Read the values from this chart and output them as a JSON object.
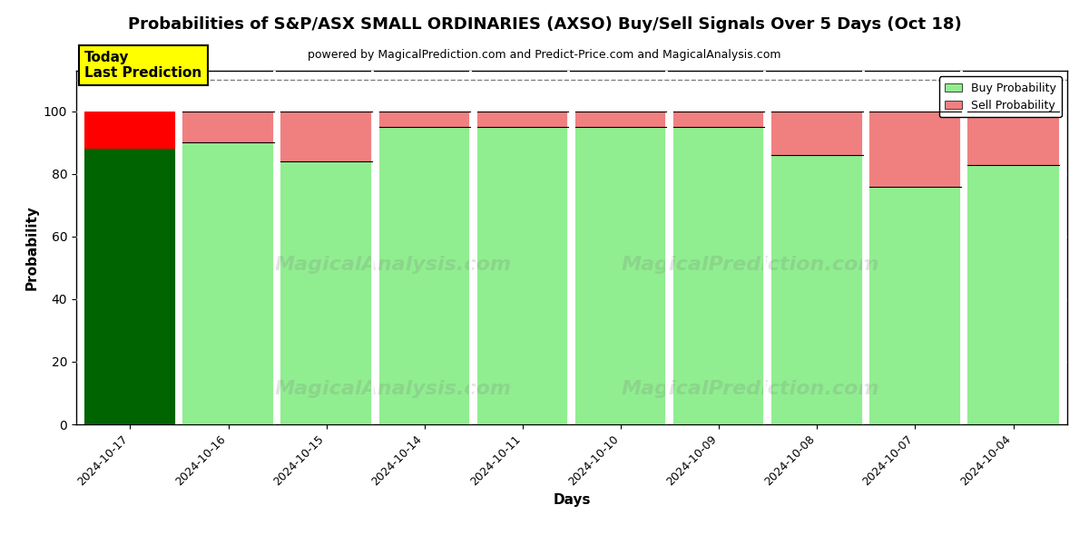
{
  "title": "Probabilities of S&P/ASX SMALL ORDINARIES (AXSO) Buy/Sell Signals Over 5 Days (Oct 18)",
  "subtitle": "powered by MagicalPrediction.com and Predict-Price.com and MagicalAnalysis.com",
  "xlabel": "Days",
  "ylabel": "Probability",
  "dates": [
    "2024-10-17",
    "2024-10-16",
    "2024-10-15",
    "2024-10-14",
    "2024-10-11",
    "2024-10-10",
    "2024-10-09",
    "2024-10-08",
    "2024-10-07",
    "2024-10-04"
  ],
  "buy_probs": [
    88,
    90,
    84,
    95,
    95,
    95,
    95,
    86,
    76,
    83
  ],
  "sell_probs": [
    12,
    10,
    16,
    5,
    5,
    5,
    5,
    14,
    24,
    17
  ],
  "today_buy_color": "#006400",
  "today_sell_color": "#FF0000",
  "other_buy_color": "#90EE90",
  "other_sell_color": "#F08080",
  "today_annotation_bg": "#FFFF00",
  "today_annotation_text": "Today\nLast Prediction",
  "ylim": [
    0,
    113
  ],
  "yticks": [
    0,
    20,
    40,
    60,
    80,
    100
  ],
  "dashed_line_y": 110,
  "legend_buy_label": "Buy Probability",
  "legend_sell_label": "Sell Probability",
  "bar_width": 0.93,
  "watermark1": "MagicalAnalysis.com",
  "watermark2": "MagicalPrediction.com"
}
